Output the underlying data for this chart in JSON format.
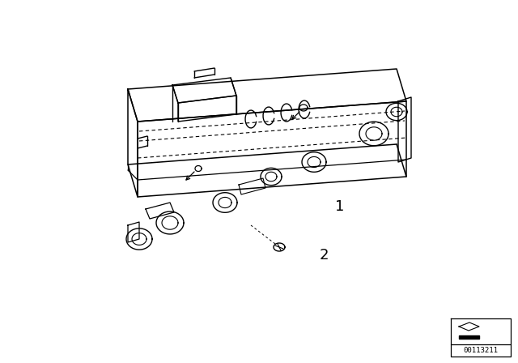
{
  "background_color": "#ffffff",
  "line_color": "#000000",
  "figsize": [
    6.4,
    4.48
  ],
  "dpi": 100,
  "label_1": "1",
  "label_2": "2",
  "diagram_id": "00113211"
}
